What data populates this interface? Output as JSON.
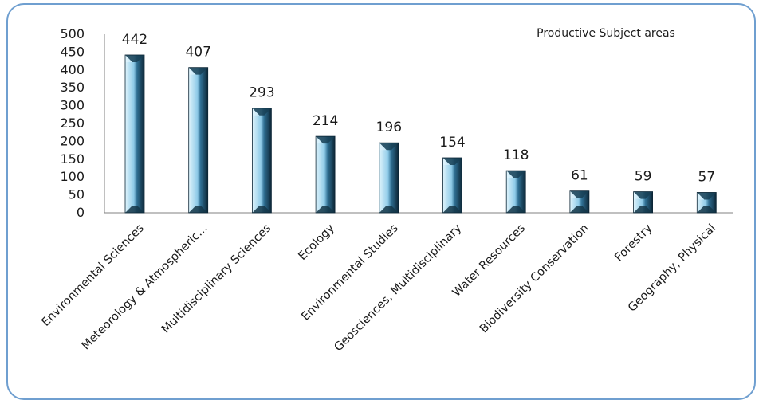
{
  "chart_data": {
    "type": "bar",
    "title": "Productive Subject areas",
    "categories": [
      "Environmental Sciences",
      "Meteorology & Atmospheric...",
      "Multidisciplinary Sciences",
      "Ecology",
      "Environmental Studies",
      "Geosciences, Multidisciplinary",
      "Water Resources",
      "Biodiversity Conservation",
      "Forestry",
      "Geography, Physical"
    ],
    "values": [
      442,
      407,
      293,
      214,
      196,
      154,
      118,
      61,
      59,
      57
    ],
    "ylim": [
      0,
      500
    ],
    "yticks": [
      "0",
      "50",
      "100",
      "150",
      "200",
      "250",
      "300",
      "350",
      "400",
      "450",
      "500"
    ],
    "data_labels": true,
    "grid": false,
    "legend": "none",
    "colors": {
      "bar_light": "#bfe6f6",
      "bar_mid": "#4a8fb5",
      "bar_dark": "#0f2e40",
      "border": "#6f9fd0"
    }
  }
}
